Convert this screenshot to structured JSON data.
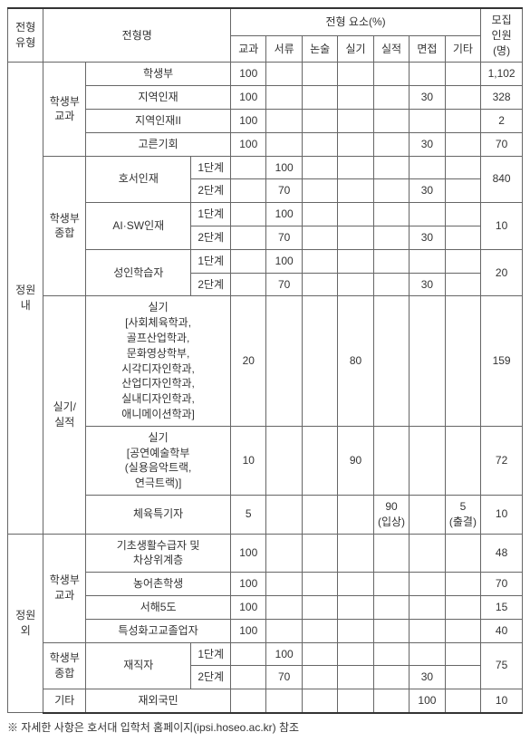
{
  "header": {
    "type": "전형\n유형",
    "name": "전형명",
    "elements_group": "전형 요소(%)",
    "elems": [
      "교과",
      "서류",
      "논술",
      "실기",
      "실적",
      "면접",
      "기타"
    ],
    "count": "모집\n인원\n(명)"
  },
  "inner": {
    "label": "정원\n내",
    "gyogwa": {
      "label": "학생부\n교과",
      "rows": [
        {
          "name": "학생부",
          "vals": [
            "100",
            "",
            "",
            "",
            "",
            "",
            ""
          ],
          "count": "1,102"
        },
        {
          "name": "지역인재",
          "vals": [
            "100",
            "",
            "",
            "",
            "",
            "30",
            ""
          ],
          "count": "328"
        },
        {
          "name": "지역인재II",
          "vals": [
            "100",
            "",
            "",
            "",
            "",
            "",
            ""
          ],
          "count": "2"
        },
        {
          "name": "고른기회",
          "vals": [
            "100",
            "",
            "",
            "",
            "",
            "30",
            ""
          ],
          "count": "70"
        }
      ]
    },
    "jonghap": {
      "label": "학생부\n종합",
      "groups": [
        {
          "name": "호서인재",
          "s1": "1단계",
          "s1v": [
            "",
            "100",
            "",
            "",
            "",
            "",
            ""
          ],
          "s2": "2단계",
          "s2v": [
            "",
            "70",
            "",
            "",
            "",
            "30",
            ""
          ],
          "count": "840"
        },
        {
          "name": "AI·SW인재",
          "s1": "1단계",
          "s1v": [
            "",
            "100",
            "",
            "",
            "",
            "",
            ""
          ],
          "s2": "2단계",
          "s2v": [
            "",
            "70",
            "",
            "",
            "",
            "30",
            ""
          ],
          "count": "10"
        },
        {
          "name": "성인학습자",
          "s1": "1단계",
          "s1v": [
            "",
            "100",
            "",
            "",
            "",
            "",
            ""
          ],
          "s2": "2단계",
          "s2v": [
            "",
            "70",
            "",
            "",
            "",
            "30",
            ""
          ],
          "count": "20"
        }
      ]
    },
    "silgi": {
      "label": "실기/\n실적",
      "rows": [
        {
          "name": "실기\n[사회체육학과,\n골프산업학과,\n문화영상학부,\n시각디자인학과,\n산업디자인학과,\n실내디자인학과,\n애니메이션학과]",
          "vals": [
            "20",
            "",
            "",
            "80",
            "",
            "",
            ""
          ],
          "count": "159"
        },
        {
          "name": "실기\n[공연예술학부\n(실용음악트랙,\n연극트랙)]",
          "vals": [
            "10",
            "",
            "",
            "90",
            "",
            "",
            ""
          ],
          "count": "72"
        },
        {
          "name": "체육특기자",
          "vals": [
            "5",
            "",
            "",
            "",
            "90\n(입상)",
            "",
            "5\n(출결)"
          ],
          "count": "10"
        }
      ]
    }
  },
  "outer": {
    "label": "정원\n외",
    "gyogwa": {
      "label": "학생부\n교과",
      "rows": [
        {
          "name": "기초생활수급자 및\n차상위계층",
          "vals": [
            "100",
            "",
            "",
            "",
            "",
            "",
            ""
          ],
          "count": "48"
        },
        {
          "name": "농어촌학생",
          "vals": [
            "100",
            "",
            "",
            "",
            "",
            "",
            ""
          ],
          "count": "70"
        },
        {
          "name": "서해5도",
          "vals": [
            "100",
            "",
            "",
            "",
            "",
            "",
            ""
          ],
          "count": "15"
        },
        {
          "name": "특성화고교졸업자",
          "vals": [
            "100",
            "",
            "",
            "",
            "",
            "",
            ""
          ],
          "count": "40"
        }
      ]
    },
    "jonghap": {
      "label": "학생부\n종합",
      "group": {
        "name": "재직자",
        "s1": "1단계",
        "s1v": [
          "",
          "100",
          "",
          "",
          "",
          "",
          ""
        ],
        "s2": "2단계",
        "s2v": [
          "",
          "70",
          "",
          "",
          "",
          "30",
          ""
        ],
        "count": "75"
      }
    },
    "etc": {
      "label": "기타",
      "name": "재외국민",
      "vals": [
        "",
        "",
        "",
        "",
        "",
        "100",
        ""
      ],
      "count": "10"
    }
  },
  "footnote": "※ 자세한 사항은 호서대 입학처 홈페이지(ipsi.hoseo.ac.kr) 참조"
}
